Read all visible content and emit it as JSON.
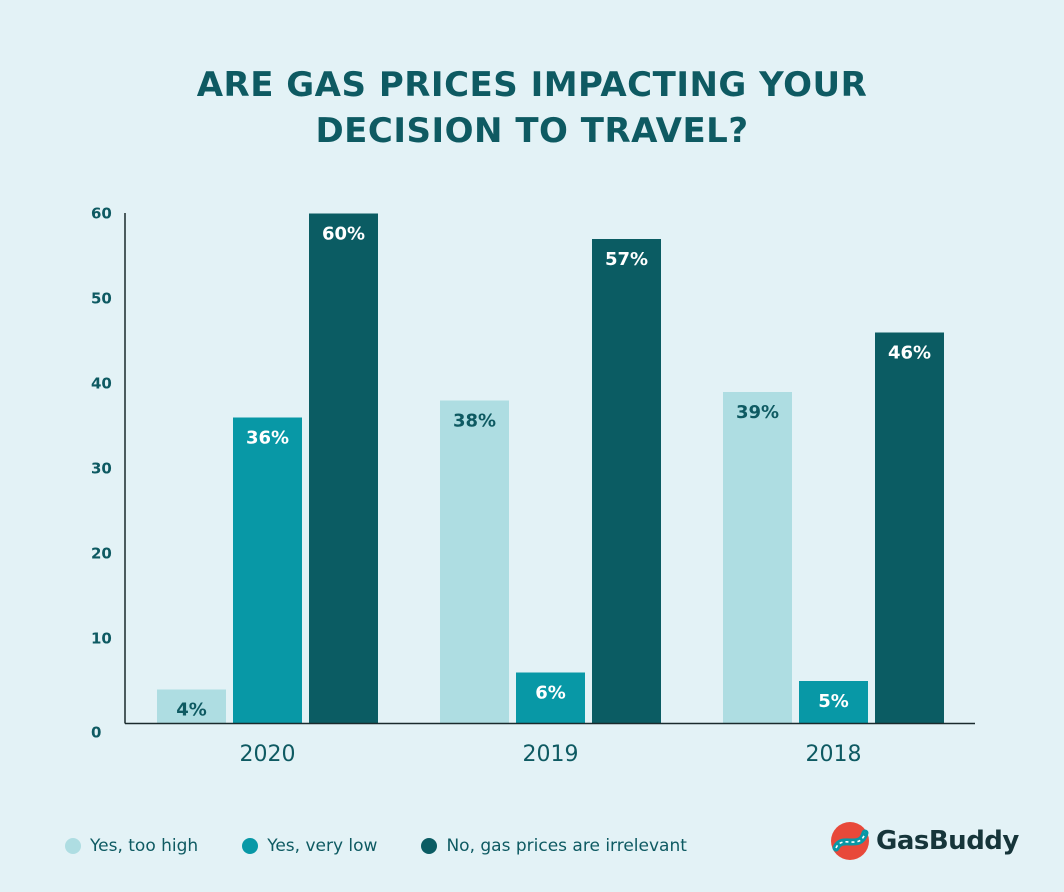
{
  "title_lines": [
    "ARE GAS PRICES IMPACTING YOUR",
    "DECISION TO TRAVEL?"
  ],
  "brand": {
    "name": "GasBuddy"
  },
  "colors": {
    "background": "#e3f2f6",
    "text": "#0e5a62",
    "axis": "#1a2a2c"
  },
  "chart_data": {
    "type": "bar",
    "title": "ARE GAS PRICES IMPACTING YOUR DECISION TO TRAVEL?",
    "xlabel": "",
    "ylabel": "",
    "categories": [
      "2020",
      "2019",
      "2018"
    ],
    "ylim": [
      0,
      60
    ],
    "yticks": [
      0,
      10,
      20,
      30,
      40,
      50,
      60
    ],
    "grid": false,
    "legend_position": "bottom-left",
    "series": [
      {
        "name": "Yes, too high",
        "values": [
          4,
          38,
          39
        ],
        "labels": [
          "4%",
          "38%",
          "39%"
        ],
        "color": "#aedde2",
        "label_color": "#0e5a62"
      },
      {
        "name": "Yes, very low",
        "values": [
          36,
          6,
          5
        ],
        "labels": [
          "36%",
          "6%",
          "5%"
        ],
        "color": "#0898a6",
        "label_color": "#ffffff"
      },
      {
        "name": "No, gas prices are irrelevant",
        "values": [
          60,
          57,
          46
        ],
        "labels": [
          "60%",
          "57%",
          "46%"
        ],
        "color": "#0b5c63",
        "label_color": "#ffffff"
      }
    ]
  }
}
